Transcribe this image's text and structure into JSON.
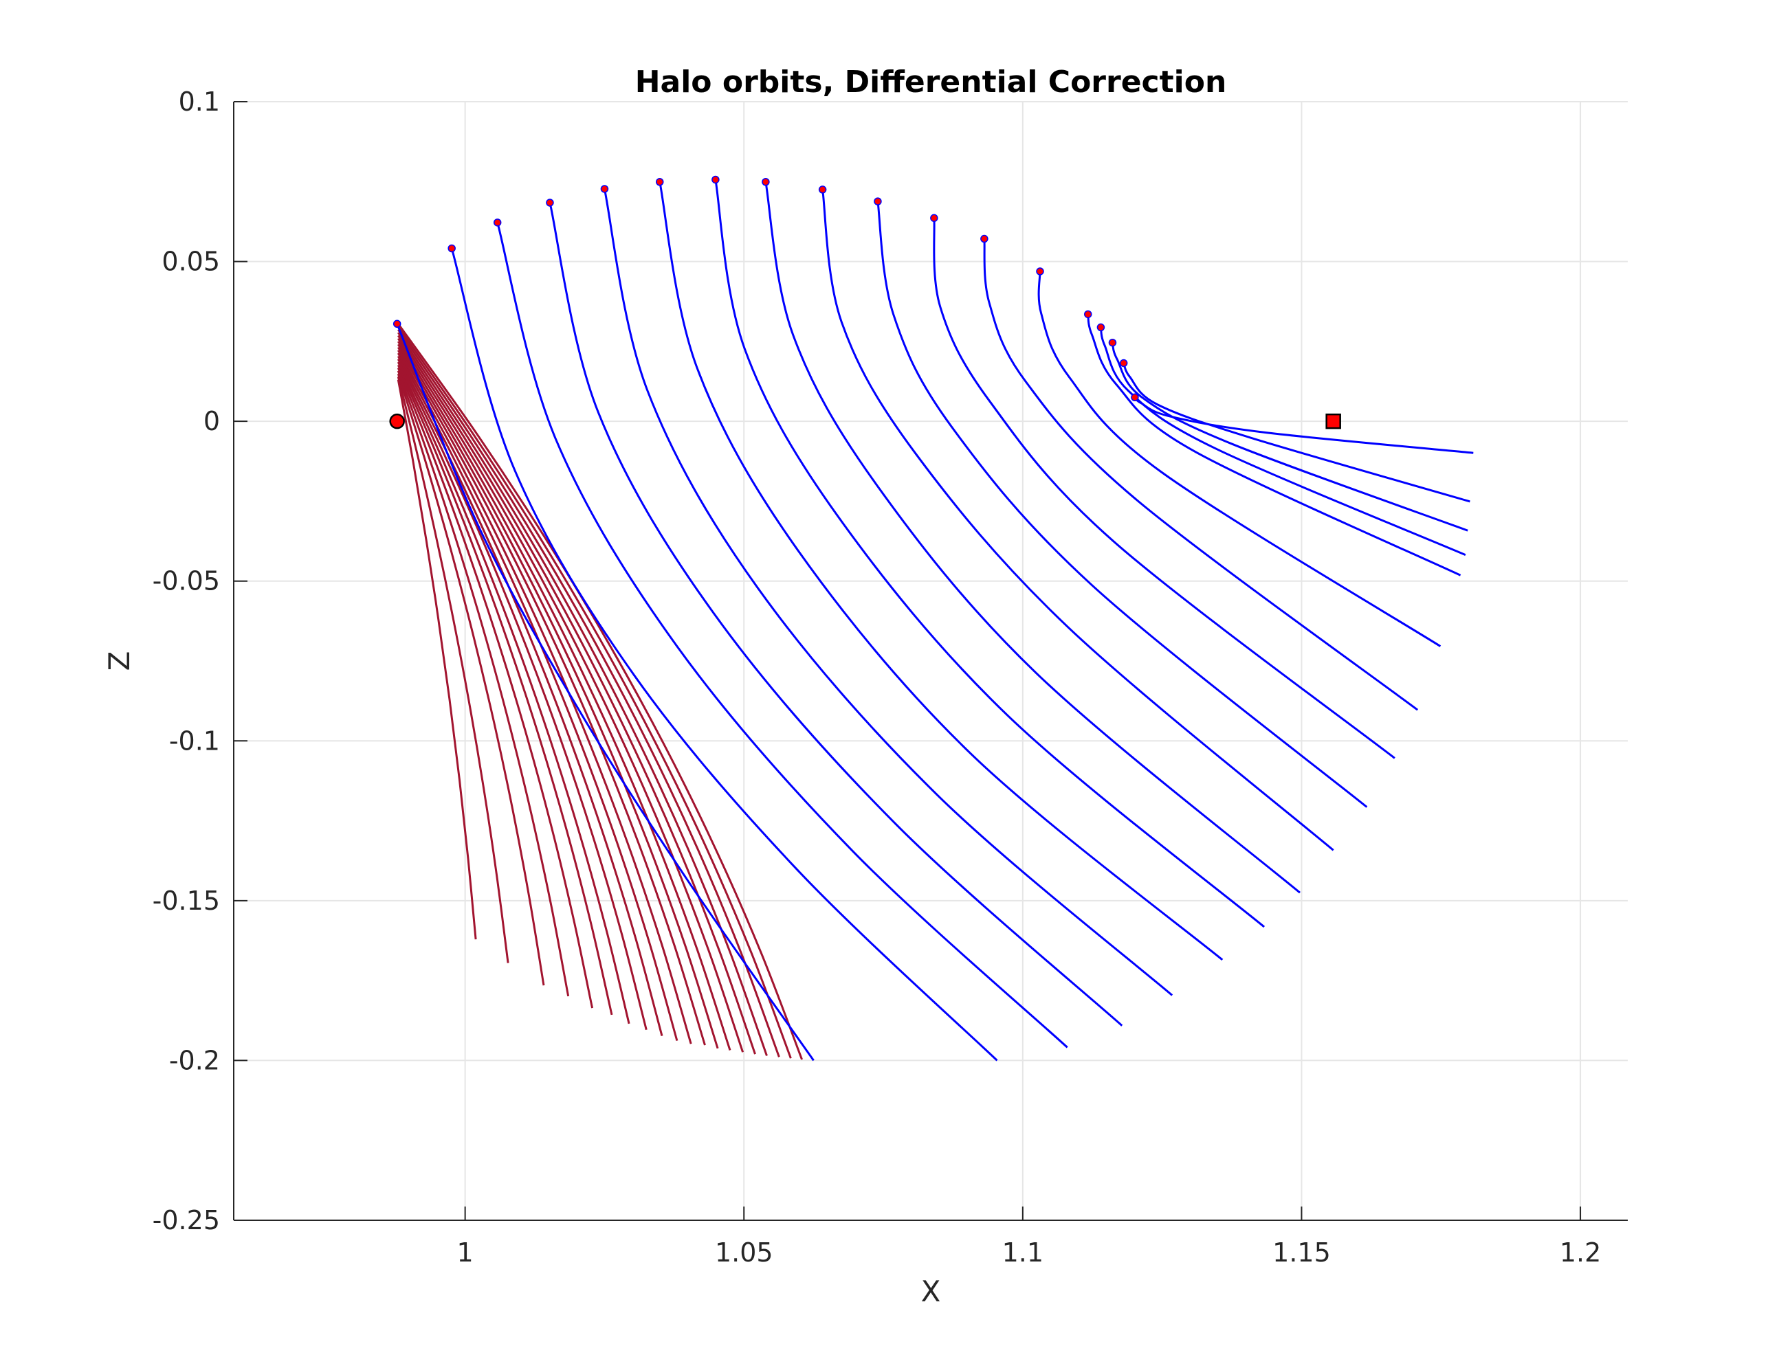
{
  "chart_data": {
    "type": "line",
    "title": "Halo orbits, Differential Correction",
    "xlabel": "X",
    "ylabel": "Z",
    "xlim": [
      0.9585,
      1.2085
    ],
    "ylim": [
      -0.25,
      0.1
    ],
    "xticks": [
      1,
      1.05,
      1.1,
      1.15,
      1.2
    ],
    "xtick_labels": [
      "1",
      "1.05",
      "1.1",
      "1.15",
      "1.2"
    ],
    "yticks": [
      0.1,
      0.05,
      0,
      -0.05,
      -0.1,
      -0.15,
      -0.2,
      -0.25
    ],
    "ytick_labels": [
      "0.1",
      "0.05",
      "0",
      "-0.05",
      "-0.1",
      "-0.15",
      "-0.2",
      "-0.25"
    ],
    "grid": true,
    "colors": {
      "converged": "#0000ff",
      "iterations": "#a2142f",
      "marker": "#ff0000",
      "marker_edge": "#000000",
      "grid": "#e6e6e6",
      "axis": "#262626"
    },
    "markers": {
      "circle": {
        "x": 0.9878,
        "y": 0.0
      },
      "square": {
        "x": 1.1557,
        "y": 0.0
      }
    },
    "converged_series": [
      {
        "x": [
          0.9878,
          1.0025,
          1.0202,
          1.0397,
          1.0625
        ],
        "y": [
          0.0305,
          -0.0332,
          -0.0897,
          -0.1431,
          -0.2
        ]
      },
      {
        "x": [
          0.9976,
          1.0089,
          1.0303,
          1.0595,
          1.0954
        ],
        "y": [
          0.0541,
          -0.0153,
          -0.0794,
          -0.1402,
          -0.2
        ]
      },
      {
        "x": [
          1.0058,
          1.0163,
          1.038,
          1.0694,
          1.108
        ],
        "y": [
          0.0622,
          -0.0058,
          -0.0704,
          -0.1343,
          -0.1959
        ]
      },
      {
        "x": [
          1.0152,
          1.0239,
          1.0448,
          1.0771,
          1.1178
        ],
        "y": [
          0.0684,
          0.0027,
          -0.0606,
          -0.1258,
          -0.1891
        ]
      },
      {
        "x": [
          1.025,
          1.0327,
          1.0525,
          1.0846,
          1.1268
        ],
        "y": [
          0.0727,
          0.0096,
          -0.0522,
          -0.1168,
          -0.1796
        ]
      },
      {
        "x": [
          1.0349,
          1.0416,
          1.0597,
          1.0908,
          1.1358
        ],
        "y": [
          0.0749,
          0.0167,
          -0.0404,
          -0.1042,
          -0.1685
        ]
      },
      {
        "x": [
          1.0449,
          1.0501,
          1.0668,
          1.0972,
          1.1433
        ],
        "y": [
          0.0756,
          0.0228,
          -0.0296,
          -0.0919,
          -0.1582
        ]
      },
      {
        "x": [
          1.0539,
          1.0588,
          1.0738,
          1.1023,
          1.1497
        ],
        "y": [
          0.0749,
          0.0271,
          -0.0199,
          -0.0786,
          -0.1475
        ]
      },
      {
        "x": [
          1.0641,
          1.0675,
          1.0807,
          1.1081,
          1.1557
        ],
        "y": [
          0.0725,
          0.0311,
          -0.0099,
          -0.0644,
          -0.1342
        ]
      },
      {
        "x": [
          1.074,
          1.0768,
          1.0872,
          1.1123,
          1.1617
        ],
        "y": [
          0.0688,
          0.0335,
          -0.0016,
          -0.0511,
          -0.1207
        ]
      },
      {
        "x": [
          1.0841,
          1.0852,
          1.0941,
          1.1163,
          1.1667
        ],
        "y": [
          0.0636,
          0.0358,
          0.0062,
          -0.0376,
          -0.1054
        ]
      },
      {
        "x": [
          1.0931,
          1.094,
          1.1005,
          1.1205,
          1.1708
        ],
        "y": [
          0.0571,
          0.037,
          0.0125,
          -0.0247,
          -0.0903
        ]
      },
      {
        "x": [
          1.1031,
          1.1033,
          1.1083,
          1.1248,
          1.1749
        ],
        "y": [
          0.0469,
          0.0338,
          0.0139,
          -0.0158,
          -0.0704
        ]
      },
      {
        "x": [
          1.1117,
          1.1124,
          1.1167,
          1.1309,
          1.1785
        ],
        "y": [
          0.0335,
          0.0271,
          0.0117,
          -0.0095,
          -0.0482
        ]
      },
      {
        "x": [
          1.114,
          1.1147,
          1.1189,
          1.1343,
          1.1794
        ],
        "y": [
          0.0294,
          0.0237,
          0.0096,
          -0.0083,
          -0.0418
        ]
      },
      {
        "x": [
          1.1161,
          1.1169,
          1.1213,
          1.1374,
          1.1798
        ],
        "y": [
          0.0246,
          0.0195,
          0.0076,
          -0.007,
          -0.0342
        ]
      },
      {
        "x": [
          1.1181,
          1.1192,
          1.1241,
          1.1408,
          1.1802
        ],
        "y": [
          0.0182,
          0.0139,
          0.0053,
          -0.0051,
          -0.0251
        ]
      },
      {
        "x": [
          1.1201,
          1.1212,
          1.1265,
          1.1439,
          1.1808
        ],
        "y": [
          0.0075,
          0.0057,
          0.0015,
          -0.0036,
          -0.0099
        ]
      }
    ],
    "iteration_endpoints": [
      {
        "x": 1.0019,
        "y": -0.1621
      },
      {
        "x": 1.0077,
        "y": -0.1695
      },
      {
        "x": 1.0141,
        "y": -0.1765
      },
      {
        "x": 1.0185,
        "y": -0.1799
      },
      {
        "x": 1.0228,
        "y": -0.1836
      },
      {
        "x": 1.0263,
        "y": -0.1857
      },
      {
        "x": 1.0294,
        "y": -0.1885
      },
      {
        "x": 1.0325,
        "y": -0.1904
      },
      {
        "x": 1.0353,
        "y": -0.1923
      },
      {
        "x": 1.038,
        "y": -0.1938
      },
      {
        "x": 1.0405,
        "y": -0.1948
      },
      {
        "x": 1.043,
        "y": -0.1952
      },
      {
        "x": 1.0453,
        "y": -0.1962
      },
      {
        "x": 1.0475,
        "y": -0.1968
      },
      {
        "x": 1.0498,
        "y": -0.1974
      },
      {
        "x": 1.052,
        "y": -0.198
      },
      {
        "x": 1.0541,
        "y": -0.1985
      },
      {
        "x": 1.0563,
        "y": -0.1989
      },
      {
        "x": 1.0584,
        "y": -0.1993
      },
      {
        "x": 1.0604,
        "y": -0.1997
      }
    ]
  }
}
